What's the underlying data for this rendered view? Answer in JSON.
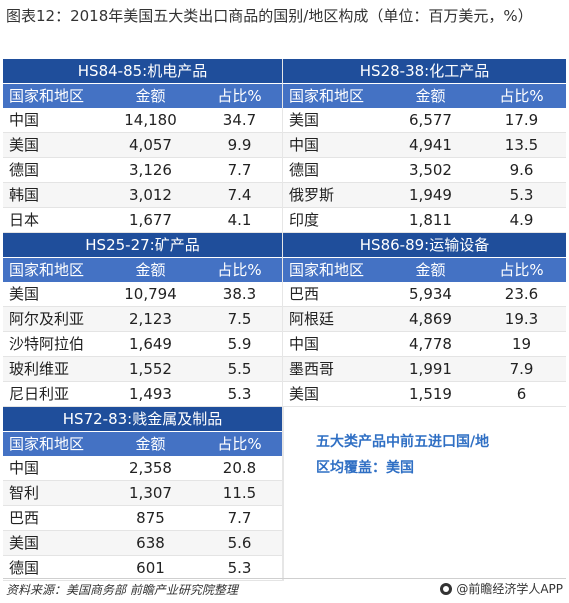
{
  "title": "图表12：2018年美国五大类出口商品的国别/地区构成（单位：百万美元，%）",
  "headers": {
    "country": "国家和地区",
    "amount": "金额",
    "share": "占比%"
  },
  "tables": [
    {
      "category": "HS84-85:机电产品",
      "rows": [
        {
          "country": "中国",
          "amount": "14,180",
          "share": "34.7"
        },
        {
          "country": "美国",
          "amount": "4,057",
          "share": "9.9"
        },
        {
          "country": "德国",
          "amount": "3,126",
          "share": "7.7"
        },
        {
          "country": "韩国",
          "amount": "3,012",
          "share": "7.4"
        },
        {
          "country": "日本",
          "amount": "1,677",
          "share": "4.1"
        }
      ]
    },
    {
      "category": "HS28-38:化工产品",
      "rows": [
        {
          "country": "美国",
          "amount": "6,577",
          "share": "17.9"
        },
        {
          "country": "中国",
          "amount": "4,941",
          "share": "13.5"
        },
        {
          "country": "德国",
          "amount": "3,502",
          "share": "9.6"
        },
        {
          "country": "俄罗斯",
          "amount": "1,949",
          "share": "5.3"
        },
        {
          "country": "印度",
          "amount": "1,811",
          "share": "4.9"
        }
      ]
    },
    {
      "category": "HS25-27:矿产品",
      "rows": [
        {
          "country": "美国",
          "amount": "10,794",
          "share": "38.3"
        },
        {
          "country": "阿尔及利亚",
          "amount": "2,123",
          "share": "7.5"
        },
        {
          "country": "沙特阿拉伯",
          "amount": "1,649",
          "share": "5.9"
        },
        {
          "country": "玻利维亚",
          "amount": "1,552",
          "share": "5.5"
        },
        {
          "country": "尼日利亚",
          "amount": "1,493",
          "share": "5.3"
        }
      ]
    },
    {
      "category": "HS86-89:运输设备",
      "rows": [
        {
          "country": "巴西",
          "amount": "5,934",
          "share": "23.6"
        },
        {
          "country": "阿根廷",
          "amount": "4,869",
          "share": "19.3"
        },
        {
          "country": "中国",
          "amount": "4,778",
          "share": "19"
        },
        {
          "country": "墨西哥",
          "amount": "1,991",
          "share": "7.9"
        },
        {
          "country": "美国",
          "amount": "1,519",
          "share": "6"
        }
      ]
    },
    {
      "category": "HS72-83:贱金属及制品",
      "rows": [
        {
          "country": "中国",
          "amount": "2,358",
          "share": "20.8"
        },
        {
          "country": "智利",
          "amount": "1,307",
          "share": "11.5"
        },
        {
          "country": "巴西",
          "amount": "875",
          "share": "7.7"
        },
        {
          "country": "美国",
          "amount": "638",
          "share": "5.6"
        },
        {
          "country": "德国",
          "amount": "601",
          "share": "5.3"
        }
      ]
    }
  ],
  "note": {
    "line1": "五大类产品中前五进口国/地",
    "line2": "区均覆盖：美国"
  },
  "footer": {
    "source": "资料来源：美国商务部 前瞻产业研究院整理",
    "brand": "@前瞻经济学人APP"
  }
}
